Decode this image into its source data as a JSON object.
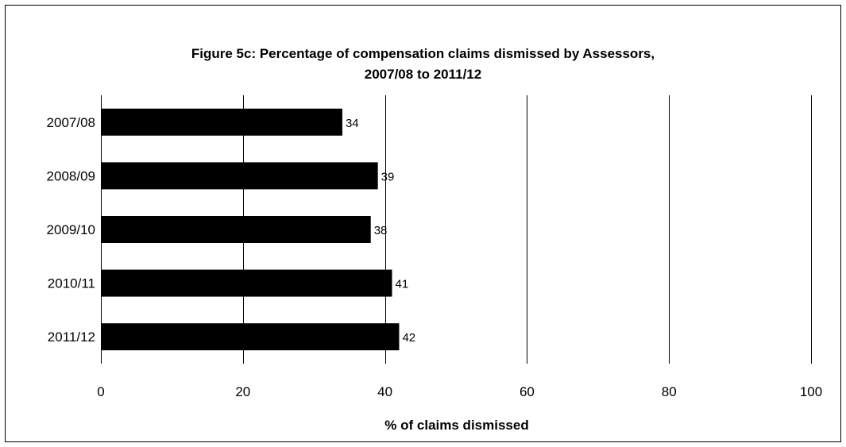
{
  "chart_data": {
    "type": "bar",
    "orientation": "horizontal",
    "title": "Figure 5c: Percentage of compensation claims dismissed by Assessors,",
    "subtitle": "2007/08 to 2011/12",
    "categories": [
      "2007/08",
      "2008/09",
      "2009/10",
      "2010/11",
      "2011/12"
    ],
    "values": [
      34,
      39,
      38,
      41,
      42
    ],
    "data_labels": [
      "34",
      "39",
      "38",
      "41",
      "42"
    ],
    "xlabel": "% of claims dismissed",
    "ylabel": "",
    "xlim": [
      0,
      100
    ],
    "xticks": [
      0,
      20,
      40,
      60,
      80,
      100
    ],
    "xtick_labels": [
      "0",
      "20",
      "40",
      "60",
      "80",
      "100"
    ],
    "grid": "vertical",
    "legend": "none",
    "bar_color": "#000000",
    "gridline_color": "#000000"
  }
}
